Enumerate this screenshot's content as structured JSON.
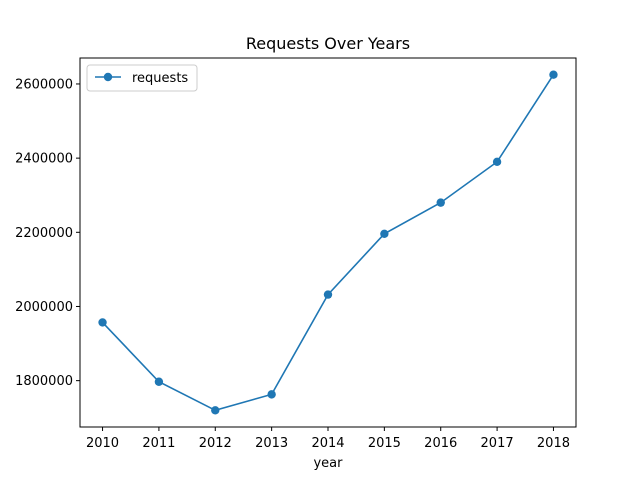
{
  "chart_data": {
    "type": "line",
    "title": "Requests Over Years",
    "xlabel": "year",
    "ylabel": "",
    "x": [
      2010,
      2011,
      2012,
      2013,
      2014,
      2015,
      2016,
      2017,
      2018
    ],
    "series": [
      {
        "name": "requests",
        "color": "#1f77b4",
        "marker": "circle",
        "values": [
          1957000,
          1797000,
          1720000,
          1763000,
          2032000,
          2196000,
          2280000,
          2390000,
          2625000
        ]
      }
    ],
    "xlim": [
      2009.6,
      2018.4
    ],
    "ylim": [
      1675000,
      2670000
    ],
    "yticks": [
      1800000,
      2000000,
      2200000,
      2400000,
      2600000
    ],
    "xticks": [
      2010,
      2011,
      2012,
      2013,
      2014,
      2015,
      2016,
      2017,
      2018
    ],
    "grid": false,
    "legend_position": "top-left"
  }
}
